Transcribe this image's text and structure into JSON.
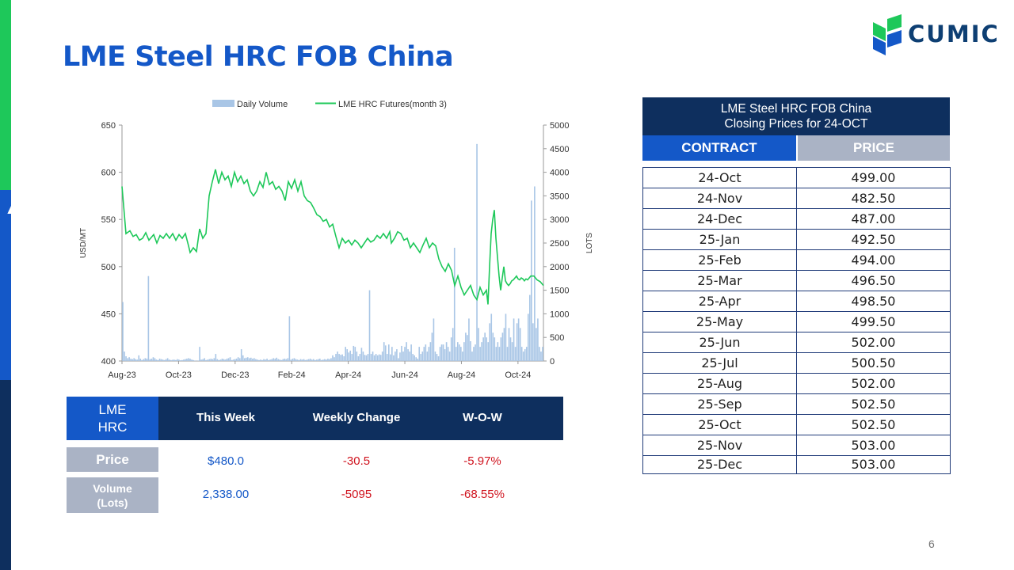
{
  "title": "LME Steel HRC FOB China",
  "logo": {
    "text": "CUMIC"
  },
  "page_number": "6",
  "colors": {
    "accent_blue": "#1458c8",
    "navy": "#0e2f5e",
    "grey_label": "#aab3c5",
    "line_green": "#1ec85a",
    "bar_blue": "#a9c6e6",
    "negative_red": "#d0141f"
  },
  "chart_data": {
    "type": "bar+line",
    "x_tick_labels": [
      "Aug-23",
      "Oct-23",
      "Dec-23",
      "Feb-24",
      "Apr-24",
      "Jun-24",
      "Aug-24",
      "Oct-24"
    ],
    "y_left": {
      "label": "USD/MT",
      "ticks": [
        400,
        450,
        500,
        550,
        600,
        650
      ],
      "range": [
        400,
        650
      ]
    },
    "y_right": {
      "label": "LOTS",
      "ticks": [
        0,
        500,
        1000,
        1500,
        2000,
        2500,
        3000,
        3500,
        4000,
        4500,
        5000
      ],
      "range": [
        0,
        5000
      ]
    },
    "legend": [
      "Daily Volume",
      "LME HRC Futures(month 3)"
    ],
    "legend_position": "top",
    "line_series": {
      "name": "LME HRC Futures(month 3)",
      "points": [
        [
          0,
          585
        ],
        [
          2,
          565
        ],
        [
          5,
          535
        ],
        [
          10,
          538
        ],
        [
          14,
          532
        ],
        [
          18,
          534
        ],
        [
          22,
          528
        ],
        [
          26,
          530
        ],
        [
          30,
          536
        ],
        [
          34,
          528
        ],
        [
          40,
          534
        ],
        [
          44,
          525
        ],
        [
          48,
          533
        ],
        [
          52,
          530
        ],
        [
          56,
          535
        ],
        [
          60,
          530
        ],
        [
          64,
          535
        ],
        [
          68,
          528
        ],
        [
          72,
          534
        ],
        [
          76,
          530
        ],
        [
          80,
          535
        ],
        [
          84,
          522
        ],
        [
          86,
          515
        ],
        [
          90,
          520
        ],
        [
          94,
          516
        ],
        [
          98,
          540
        ],
        [
          102,
          530
        ],
        [
          106,
          535
        ],
        [
          110,
          575
        ],
        [
          114,
          590
        ],
        [
          118,
          603
        ],
        [
          122,
          588
        ],
        [
          126,
          600
        ],
        [
          130,
          592
        ],
        [
          134,
          596
        ],
        [
          138,
          585
        ],
        [
          142,
          600
        ],
        [
          146,
          590
        ],
        [
          150,
          596
        ],
        [
          154,
          588
        ],
        [
          158,
          592
        ],
        [
          162,
          580
        ],
        [
          166,
          575
        ],
        [
          170,
          580
        ],
        [
          174,
          590
        ],
        [
          178,
          584
        ],
        [
          182,
          600
        ],
        [
          186,
          587
        ],
        [
          190,
          590
        ],
        [
          194,
          582
        ],
        [
          198,
          585
        ],
        [
          202,
          580
        ],
        [
          206,
          570
        ],
        [
          210,
          590
        ],
        [
          214,
          583
        ],
        [
          218,
          592
        ],
        [
          222,
          580
        ],
        [
          226,
          590
        ],
        [
          230,
          575
        ],
        [
          234,
          570
        ],
        [
          238,
          568
        ],
        [
          242,
          562
        ],
        [
          246,
          555
        ],
        [
          250,
          553
        ],
        [
          254,
          548
        ],
        [
          258,
          550
        ],
        [
          262,
          542
        ],
        [
          266,
          545
        ],
        [
          270,
          532
        ],
        [
          274,
          520
        ],
        [
          278,
          530
        ],
        [
          282,
          525
        ],
        [
          286,
          528
        ],
        [
          290,
          523
        ],
        [
          294,
          528
        ],
        [
          298,
          525
        ],
        [
          302,
          520
        ],
        [
          306,
          525
        ],
        [
          310,
          530
        ],
        [
          314,
          526
        ],
        [
          318,
          528
        ],
        [
          322,
          533
        ],
        [
          326,
          530
        ],
        [
          330,
          535
        ],
        [
          334,
          530
        ],
        [
          338,
          537
        ],
        [
          340,
          525
        ],
        [
          344,
          530
        ],
        [
          348,
          537
        ],
        [
          352,
          535
        ],
        [
          356,
          528
        ],
        [
          360,
          530
        ],
        [
          364,
          520
        ],
        [
          368,
          525
        ],
        [
          372,
          520
        ],
        [
          376,
          515
        ],
        [
          380,
          523
        ],
        [
          384,
          530
        ],
        [
          388,
          520
        ],
        [
          392,
          525
        ],
        [
          396,
          522
        ],
        [
          400,
          508
        ],
        [
          404,
          500
        ],
        [
          408,
          495
        ],
        [
          412,
          503
        ],
        [
          416,
          496
        ],
        [
          420,
          480
        ],
        [
          424,
          490
        ],
        [
          428,
          478
        ],
        [
          432,
          470
        ],
        [
          436,
          475
        ],
        [
          440,
          480
        ],
        [
          444,
          470
        ],
        [
          448,
          465
        ],
        [
          452,
          478
        ],
        [
          456,
          470
        ],
        [
          460,
          475
        ],
        [
          462,
          460
        ],
        [
          464,
          500
        ],
        [
          466,
          535
        ],
        [
          468,
          550
        ],
        [
          470,
          560
        ],
        [
          472,
          530
        ],
        [
          474,
          510
        ],
        [
          476,
          490
        ],
        [
          478,
          475
        ],
        [
          480,
          488
        ],
        [
          482,
          500
        ],
        [
          484,
          485
        ],
        [
          486,
          482
        ],
        [
          488,
          480
        ],
        [
          490,
          482
        ],
        [
          492,
          485
        ],
        [
          494,
          486
        ],
        [
          496,
          488
        ],
        [
          498,
          490
        ],
        [
          500,
          487
        ],
        [
          502,
          486
        ],
        [
          504,
          488
        ],
        [
          506,
          487
        ],
        [
          508,
          485
        ],
        [
          510,
          487
        ],
        [
          512,
          486
        ],
        [
          514,
          488
        ],
        [
          516,
          490
        ],
        [
          518,
          490
        ],
        [
          520,
          490
        ],
        [
          522,
          488
        ],
        [
          524,
          486
        ],
        [
          526,
          485
        ],
        [
          528,
          484
        ],
        [
          530,
          482
        ],
        [
          532,
          480
        ]
      ]
    },
    "bar_series": {
      "name": "Daily Volume",
      "values": [
        1250,
        200,
        100,
        60,
        80,
        50,
        40,
        60,
        40,
        30,
        120,
        50,
        20,
        40,
        60,
        50,
        1800,
        40,
        50,
        80,
        60,
        30,
        20,
        50,
        40,
        30,
        20,
        40,
        60,
        30,
        20,
        25,
        30,
        20,
        40,
        30,
        15,
        20,
        30,
        40,
        50,
        60,
        50,
        30,
        20,
        10,
        5,
        10,
        300,
        30,
        40,
        60,
        20,
        30,
        40,
        50,
        40,
        60,
        150,
        40,
        20,
        30,
        50,
        40,
        30,
        50,
        60,
        80,
        20,
        30,
        40,
        50,
        80,
        60,
        250,
        120,
        60,
        70,
        80,
        60,
        70,
        50,
        60,
        40,
        30,
        20,
        30,
        20,
        40,
        30,
        50,
        20,
        30,
        40,
        60,
        50,
        70,
        40,
        30,
        20,
        40,
        50,
        40,
        60,
        950,
        30,
        50,
        60,
        40,
        30,
        20,
        40,
        30,
        40,
        20,
        30,
        40,
        50,
        30,
        40,
        20,
        30,
        40,
        50,
        20,
        30,
        40,
        30,
        50,
        40,
        60,
        120,
        80,
        150,
        200,
        150,
        130,
        140,
        100,
        300,
        250,
        180,
        220,
        150,
        320,
        300,
        200,
        100,
        150,
        280,
        200,
        130,
        120,
        150,
        1500,
        150,
        200,
        120,
        150,
        120,
        140,
        130,
        200,
        400,
        330,
        150,
        350,
        140,
        300,
        120,
        200,
        250,
        60,
        180,
        320,
        200,
        300,
        400,
        250,
        200,
        350,
        150,
        120,
        80,
        50,
        300,
        150,
        200,
        300,
        350,
        200,
        300,
        400,
        600,
        900,
        200,
        150,
        100,
        300,
        350,
        350,
        250,
        400,
        300,
        200,
        500,
        700,
        2400,
        300,
        400,
        350,
        300,
        200,
        400,
        600,
        550,
        900,
        420,
        200,
        300,
        350,
        4600,
        700,
        300,
        400,
        500,
        600,
        500,
        400,
        800,
        1000,
        600,
        500,
        300,
        400,
        300,
        500,
        600,
        700,
        1000,
        300,
        700,
        500,
        400,
        900,
        300,
        800,
        900,
        700,
        300,
        200,
        250,
        300,
        1000,
        1400,
        3400,
        800,
        3700,
        700,
        900,
        300,
        200,
        300
      ]
    }
  },
  "summary": {
    "corner_label_line1": "LME",
    "corner_label_line2": "HRC",
    "headers": [
      "This Week",
      "Weekly Change",
      "W-O-W"
    ],
    "rows": [
      {
        "label": "Price",
        "this_week": "$480.0",
        "weekly_change": "-30.5",
        "wow": "-5.97%"
      },
      {
        "label_line1": "Volume",
        "label_line2": "(Lots)",
        "this_week": "2,338.00",
        "weekly_change": "-5095",
        "wow": "-68.55%"
      }
    ]
  },
  "contracts": {
    "title_line1": "LME Steel HRC FOB China",
    "title_line2": "Closing Prices for 24-OCT",
    "col_contract": "CONTRACT",
    "col_price": "PRICE",
    "rows": [
      [
        "24-Oct",
        "499.00"
      ],
      [
        "24-Nov",
        "482.50"
      ],
      [
        "24-Dec",
        "487.00"
      ],
      [
        "25-Jan",
        "492.50"
      ],
      [
        "25-Feb",
        "494.00"
      ],
      [
        "25-Mar",
        "496.50"
      ],
      [
        "25-Apr",
        "498.50"
      ],
      [
        "25-May",
        "499.50"
      ],
      [
        "25-Jun",
        "502.00"
      ],
      [
        "25-Jul",
        "500.50"
      ],
      [
        "25-Aug",
        "502.00"
      ],
      [
        "25-Sep",
        "502.50"
      ],
      [
        "25-Oct",
        "502.50"
      ],
      [
        "25-Nov",
        "503.00"
      ],
      [
        "25-Dec",
        "503.00"
      ]
    ]
  }
}
